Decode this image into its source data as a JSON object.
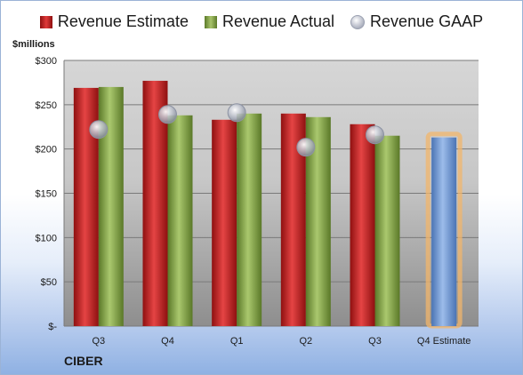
{
  "legend": {
    "estimate": "Revenue Estimate",
    "actual": "Revenue Actual",
    "gaap": "Revenue GAAP"
  },
  "unit_label": "$millions",
  "company": "CIBER",
  "colors": {
    "estimate": "#c41e1e",
    "actual": "#7f9f43",
    "gaap": "#b7bcc8",
    "forecast": "#6f98d2",
    "forecast_glow": "#f2b66b"
  },
  "chart_data": {
    "type": "bar",
    "categories": [
      "Q3",
      "Q4",
      "Q1",
      "Q2",
      "Q3",
      "Q4 Estimate"
    ],
    "series": [
      {
        "name": "Revenue Estimate",
        "values": [
          269,
          277,
          233,
          240,
          228,
          null
        ]
      },
      {
        "name": "Revenue Actual",
        "values": [
          270,
          238,
          240,
          236,
          215,
          213
        ]
      },
      {
        "name": "Revenue GAAP",
        "values": [
          222,
          239,
          241,
          202,
          216,
          null
        ]
      }
    ],
    "ylabel": "$millions",
    "ylim": [
      0,
      300
    ],
    "yticks": [
      0,
      50,
      100,
      150,
      200,
      250,
      300
    ],
    "ytick_labels": [
      "$-",
      "$50",
      "$100",
      "$150",
      "$200",
      "$250",
      "$300"
    ],
    "grid": true,
    "legend_position": "top"
  }
}
